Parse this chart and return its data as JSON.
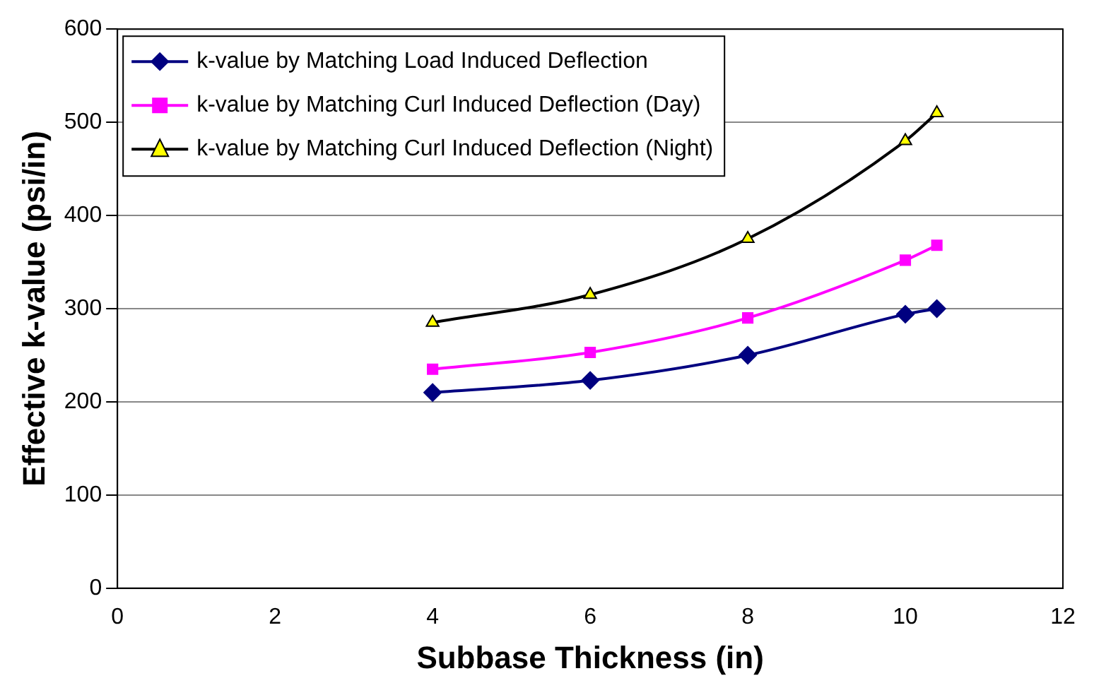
{
  "chart_data": {
    "type": "line",
    "xlabel": "Subbase Thickness (in)",
    "ylabel": "Effective k-value (psi/in)",
    "x": [
      4,
      6,
      8,
      10,
      10.4
    ],
    "series": [
      {
        "name": "k-value by Matching Load Induced Deflection",
        "color": "#000080",
        "marker": "diamond",
        "values": [
          210,
          223,
          250,
          294,
          300
        ]
      },
      {
        "name": "k-value by Matching Curl Induced Deflection (Day)",
        "color": "#ff00ff",
        "marker": "square",
        "values": [
          235,
          253,
          290,
          352,
          368
        ]
      },
      {
        "name": "k-value by Matching Curl Induced Deflection (Night)",
        "color": "#000000",
        "marker": "triangle",
        "values": [
          285,
          315,
          375,
          480,
          510
        ]
      }
    ],
    "xlim": [
      0,
      12
    ],
    "xticks": [
      0,
      2,
      4,
      6,
      8,
      10,
      12
    ],
    "ylim": [
      0,
      600
    ],
    "yticks": [
      0,
      100,
      200,
      300,
      400,
      500,
      600
    ],
    "grid": "y",
    "legend": "top left"
  }
}
